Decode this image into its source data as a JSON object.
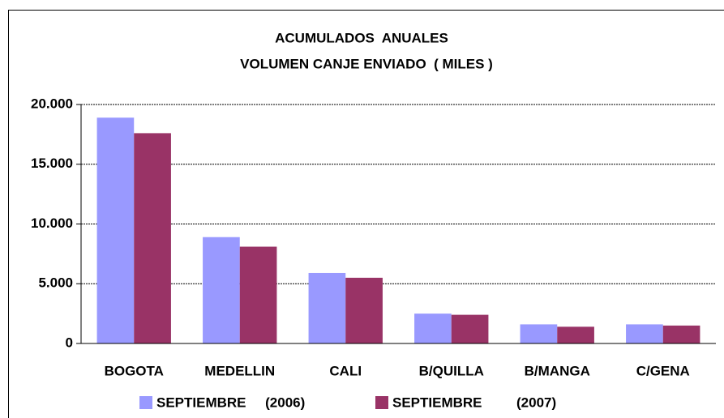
{
  "chart_data": {
    "type": "bar",
    "title": [
      "ACUMULADOS  ANUALES",
      "VOLUMEN CANJE ENVIADO  ( MILES )"
    ],
    "categories": [
      "BOGOTA",
      "MEDELLIN",
      "CALI",
      "B/QUILLA",
      "B/MANGA",
      "C/GENA"
    ],
    "series": [
      {
        "name": "SEPTIEMBRE     (2006)",
        "color": "#9999ff",
        "values": [
          18900,
          8900,
          5900,
          2500,
          1600,
          1600
        ]
      },
      {
        "name": "SEPTIEMBRE         (2007)",
        "color": "#993366",
        "values": [
          17600,
          8100,
          5500,
          2400,
          1400,
          1500
        ]
      }
    ],
    "ylim": [
      0,
      20000
    ],
    "yticks": [
      0,
      {
        "value": 5000,
        "label": "5.000"
      },
      {
        "value": 10000,
        "label": "10.000"
      },
      {
        "value": 15000,
        "label": "15.000"
      },
      {
        "value": 20000,
        "label": "20.000"
      }
    ],
    "grid": true,
    "legend": "bottom"
  }
}
